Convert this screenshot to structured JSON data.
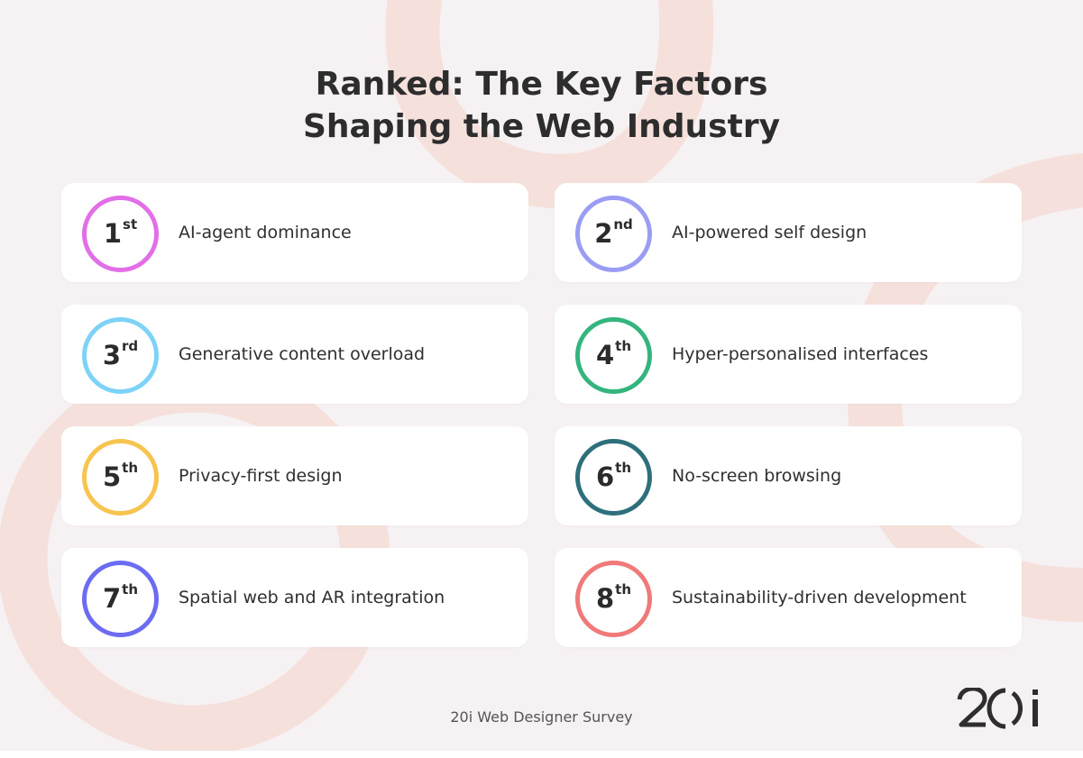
{
  "title": {
    "line1": "Ranked: The Key Factors",
    "line2": "Shaping the Web Industry"
  },
  "items": [
    {
      "num": "1",
      "suffix": "st",
      "label": "AI-agent dominance",
      "color": "#e26ee8"
    },
    {
      "num": "2",
      "suffix": "nd",
      "label": "AI-powered self design",
      "color": "#9b9cf4"
    },
    {
      "num": "3",
      "suffix": "rd",
      "label": "Generative content overload",
      "color": "#7dd3f7"
    },
    {
      "num": "4",
      "suffix": "th",
      "label": "Hyper-personalised interfaces",
      "color": "#35b57e"
    },
    {
      "num": "5",
      "suffix": "th",
      "label": "Privacy-first design",
      "color": "#f7c44f"
    },
    {
      "num": "6",
      "suffix": "th",
      "label": "No-screen browsing",
      "color": "#2e6f7c"
    },
    {
      "num": "7",
      "suffix": "th",
      "label": "Spatial web and AR integration",
      "color": "#6c6cf2"
    },
    {
      "num": "8",
      "suffix": "th",
      "label": "Sustainability-driven development",
      "color": "#f07a7a"
    }
  ],
  "footer": "20i Web Designer Survey",
  "logo": {
    "text": "20i",
    "icon": "20i-logo"
  }
}
